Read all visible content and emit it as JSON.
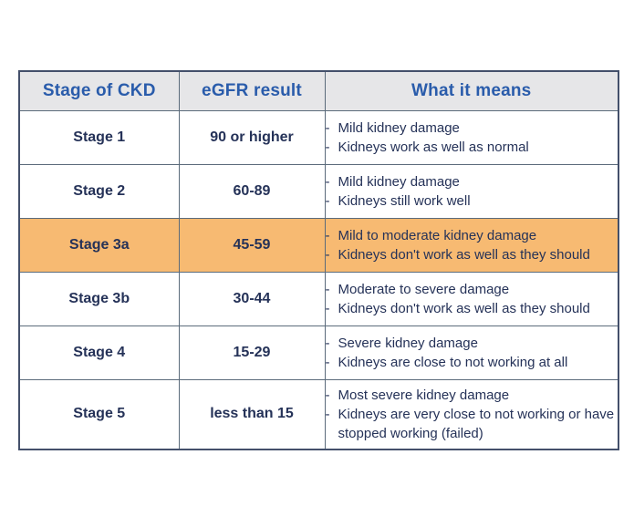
{
  "table": {
    "headers": [
      "Stage of CKD",
      "eGFR result",
      "What it means"
    ],
    "bullet_char": "-",
    "rows": [
      {
        "stage": "Stage 1",
        "egfr": "90 or higher",
        "meanings": [
          "Mild kidney damage",
          "Kidneys work as well as normal"
        ],
        "highlighted": false
      },
      {
        "stage": "Stage 2",
        "egfr": "60-89",
        "meanings": [
          "Mild kidney damage",
          "Kidneys still work well"
        ],
        "highlighted": false
      },
      {
        "stage": "Stage 3a",
        "egfr": "45-59",
        "meanings": [
          "Mild to moderate kidney damage",
          "Kidneys don't work as well as they should"
        ],
        "highlighted": true
      },
      {
        "stage": "Stage 3b",
        "egfr": "30-44",
        "meanings": [
          "Moderate to severe damage",
          "Kidneys don't work as well as they should"
        ],
        "highlighted": false
      },
      {
        "stage": "Stage 4",
        "egfr": "15-29",
        "meanings": [
          "Severe kidney damage",
          "Kidneys are close to not working at all"
        ],
        "highlighted": false
      },
      {
        "stage": "Stage 5",
        "egfr": "less than 15",
        "meanings": [
          "Most severe kidney damage",
          "Kidneys are very close to not working or have stopped working (failed)"
        ],
        "highlighted": false
      }
    ],
    "colors": {
      "highlight": "#f7ba72",
      "header_bg": "#e6e6e8",
      "header_text": "#2a5cab",
      "body_text": "#253258",
      "border": "#5b6b7b",
      "border_dark": "#44506b"
    }
  }
}
